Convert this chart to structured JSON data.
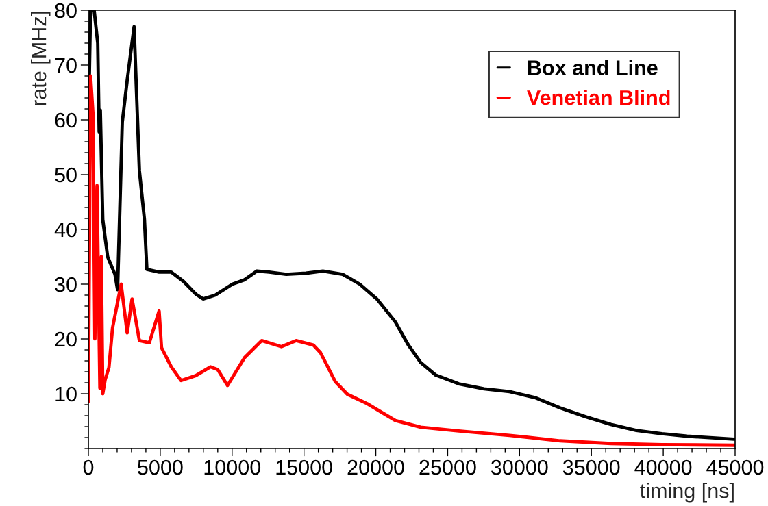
{
  "chart_data": {
    "type": "line",
    "xlabel": "timing [ns]",
    "ylabel": "rate [MHz]",
    "xlim": [
      0,
      45000
    ],
    "ylim": [
      0,
      80
    ],
    "xticks": [
      0,
      5000,
      10000,
      15000,
      20000,
      25000,
      30000,
      35000,
      40000,
      45000
    ],
    "yticks": [
      10,
      20,
      30,
      40,
      50,
      60,
      70,
      80
    ],
    "grid": false,
    "legend": "top right",
    "marker": "none",
    "line_style": "solid",
    "series": [
      {
        "name": "Box and Line",
        "color": "#000000",
        "x": [
          0,
          150,
          400,
          650,
          750,
          830,
          1000,
          1340,
          1850,
          2030,
          2360,
          2700,
          3180,
          3550,
          3900,
          4070,
          4920,
          5770,
          6620,
          7470,
          7980,
          8830,
          10020,
          10870,
          11730,
          12580,
          13770,
          15130,
          16320,
          17690,
          18880,
          20070,
          21360,
          22240,
          23120,
          24170,
          25770,
          27540,
          29300,
          31070,
          32830,
          34600,
          36360,
          38130,
          39900,
          41660,
          43430,
          44930
        ],
        "values": [
          58.7,
          80,
          80,
          74,
          57.8,
          61.8,
          41.8,
          35,
          31.8,
          29,
          59.6,
          67.2,
          77,
          50.7,
          41.8,
          32.7,
          32.2,
          32.2,
          30.5,
          28.2,
          27.3,
          28,
          30,
          30.8,
          32.4,
          32.2,
          31.8,
          32,
          32.4,
          31.8,
          30,
          27.3,
          23.1,
          19,
          15.7,
          13.4,
          11.8,
          10.9,
          10.4,
          9.3,
          7.4,
          5.8,
          4.4,
          3.3,
          2.7,
          2.25,
          1.95,
          1.7
        ]
      },
      {
        "name": "Venetian Blind",
        "color": "#ff0000",
        "x": [
          0,
          150,
          320,
          450,
          600,
          800,
          900,
          1000,
          1170,
          1430,
          1680,
          2280,
          2700,
          3040,
          3550,
          4240,
          4920,
          5090,
          5770,
          6450,
          7470,
          8490,
          9000,
          9680,
          10870,
          12060,
          13430,
          14450,
          15650,
          16150,
          17180,
          18020,
          19390,
          21360,
          23120,
          25770,
          29300,
          32830,
          36360,
          39900,
          45000
        ],
        "values": [
          8.6,
          68,
          61,
          20,
          48,
          11,
          35,
          10,
          12.6,
          14.8,
          22,
          30,
          21.1,
          27.3,
          19.7,
          19.3,
          25.1,
          18.4,
          14.9,
          12.4,
          13.3,
          14.9,
          14.4,
          11.5,
          16.6,
          19.7,
          18.6,
          19.7,
          18.9,
          17.5,
          12.2,
          9.9,
          8.2,
          5.1,
          3.9,
          3.2,
          2.4,
          1.4,
          0.9,
          0.7,
          0.6
        ]
      }
    ]
  }
}
